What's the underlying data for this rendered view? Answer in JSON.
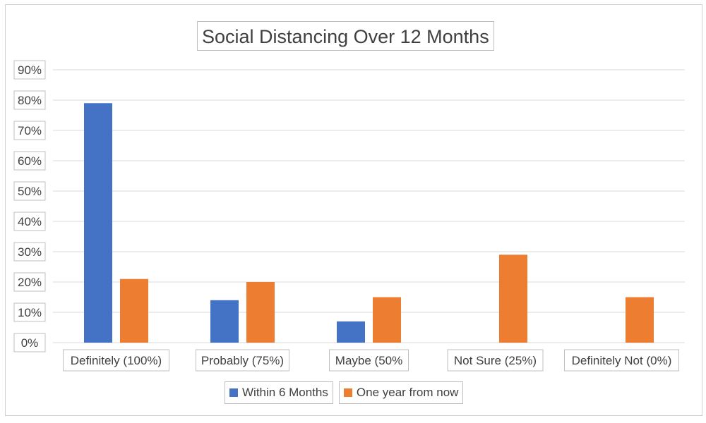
{
  "chart_data": {
    "type": "bar",
    "title": "Social Distancing Over 12 Months",
    "xlabel": "",
    "ylabel": "",
    "categories": [
      "Definitely (100%)",
      "Probably (75%)",
      "Maybe (50%",
      "Not Sure (25%)",
      "Definitely Not (0%)"
    ],
    "series": [
      {
        "name": "Within 6 Months",
        "values": [
          79,
          14,
          7,
          0,
          0
        ],
        "color": "#4472C4"
      },
      {
        "name": "One year from now",
        "values": [
          21,
          20,
          15,
          29,
          15
        ],
        "color": "#ED7D31"
      }
    ],
    "ylim": [
      0,
      90
    ],
    "yticks": [
      "0%",
      "10%",
      "20%",
      "30%",
      "40%",
      "50%",
      "60%",
      "70%",
      "80%",
      "90%"
    ],
    "grid": true,
    "legend_position": "bottom"
  }
}
